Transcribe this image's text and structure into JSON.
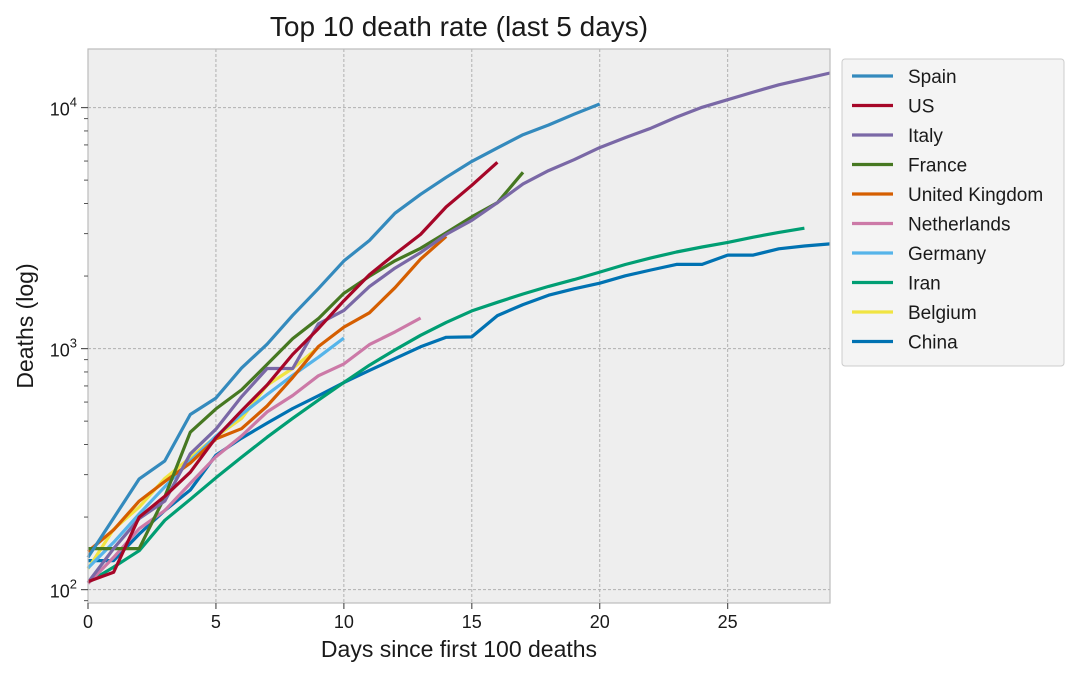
{
  "chart_data": {
    "type": "line",
    "title": "Top 10 death rate (last 5 days)",
    "xlabel": "Days since first 100 deaths",
    "ylabel": "Deaths (log)",
    "xlim": [
      0,
      29
    ],
    "ylim": [
      88,
      17500
    ],
    "yscale": "log",
    "x_ticks": [
      0,
      5,
      10,
      15,
      20,
      25
    ],
    "y_ticks": [
      {
        "value": 100,
        "base": "10",
        "exp": "2"
      },
      {
        "value": 1000,
        "base": "10",
        "exp": "3"
      },
      {
        "value": 10000,
        "base": "10",
        "exp": "4"
      }
    ],
    "grid": true,
    "legend_position": "outside-right",
    "background": "#eeeeee",
    "series": [
      {
        "name": "Spain",
        "color": "#348abd",
        "x": [
          0,
          1,
          2,
          3,
          4,
          5,
          6,
          7,
          8,
          9,
          10,
          11,
          12,
          13,
          14,
          15,
          16,
          17,
          18,
          19,
          20
        ],
        "y": [
          136,
          198,
          288,
          342,
          533,
          623,
          830,
          1043,
          1375,
          1772,
          2311,
          2808,
          3647,
          4365,
          5138,
          5982,
          6803,
          7716,
          8464,
          9387,
          10348
        ]
      },
      {
        "name": "US",
        "color": "#a60628",
        "x": [
          0,
          1,
          2,
          3,
          4,
          5,
          6,
          7,
          8,
          9,
          10,
          11,
          12,
          13,
          14,
          15,
          16
        ],
        "y": [
          108,
          118,
          200,
          244,
          307,
          427,
          552,
          706,
          946,
          1209,
          1581,
          2026,
          2467,
          2978,
          3873,
          4757,
          5926
        ]
      },
      {
        "name": "Italy",
        "color": "#7a68a6",
        "x": [
          0,
          1,
          2,
          3,
          4,
          5,
          6,
          7,
          8,
          9,
          10,
          11,
          12,
          13,
          14,
          15,
          16,
          17,
          18,
          19,
          20,
          21,
          22,
          23,
          24,
          25,
          26,
          27,
          28,
          29
        ],
        "y": [
          107,
          148,
          197,
          233,
          366,
          463,
          631,
          827,
          827,
          1266,
          1441,
          1809,
          2158,
          2503,
          2978,
          3405,
          4032,
          4825,
          5476,
          6077,
          6820,
          7503,
          8215,
          9134,
          10023,
          10779,
          11591,
          12428,
          13155,
          13915
        ]
      },
      {
        "name": "France",
        "color": "#467821",
        "x": [
          0,
          1,
          2,
          3,
          4,
          5,
          6,
          7,
          8,
          9,
          10,
          11,
          12,
          13,
          14,
          15,
          16,
          17
        ],
        "y": [
          148,
          148,
          148,
          243,
          450,
          562,
          674,
          860,
          1100,
          1331,
          1696,
          1995,
          2314,
          2606,
          3024,
          3523,
          4032,
          5387
        ]
      },
      {
        "name": "United Kingdom",
        "color": "#d55e00",
        "x": [
          0,
          1,
          2,
          3,
          4,
          5,
          6,
          7,
          8,
          9,
          10,
          11,
          12,
          13,
          14
        ],
        "y": [
          144,
          177,
          233,
          281,
          335,
          422,
          465,
          578,
          759,
          1019,
          1228,
          1408,
          1789,
          2352,
          2921
        ]
      },
      {
        "name": "Netherlands",
        "color": "#cc79a7",
        "x": [
          0,
          1,
          2,
          3,
          4,
          5,
          6,
          7,
          8,
          9,
          10,
          11,
          12,
          13
        ],
        "y": [
          106,
          136,
          179,
          213,
          276,
          356,
          434,
          546,
          639,
          771,
          864,
          1039,
          1173,
          1339
        ]
      },
      {
        "name": "Germany",
        "color": "#56b4e9",
        "x": [
          0,
          1,
          2,
          3,
          4,
          5,
          6,
          7,
          8,
          9,
          10
        ],
        "y": [
          123,
          157,
          206,
          267,
          342,
          433,
          533,
          645,
          775,
          920,
          1107
        ]
      },
      {
        "name": "Iran",
        "color": "#009e73",
        "x": [
          0,
          1,
          2,
          3,
          4,
          5,
          6,
          7,
          8,
          9,
          10,
          11,
          12,
          13,
          14,
          15,
          16,
          17,
          18,
          19,
          20,
          21,
          22,
          23,
          24,
          25,
          26,
          27,
          28
        ],
        "y": [
          107,
          124,
          145,
          194,
          237,
          291,
          354,
          429,
          514,
          611,
          724,
          853,
          988,
          1135,
          1284,
          1433,
          1556,
          1685,
          1812,
          1934,
          2077,
          2234,
          2378,
          2517,
          2640,
          2757,
          2898,
          3036,
          3160
        ]
      },
      {
        "name": "Belgium",
        "color": "#f0e442",
        "x": [
          0,
          1,
          2,
          3,
          4,
          5,
          6,
          7,
          8,
          9
        ],
        "y": [
          122,
          178,
          220,
          289,
          353,
          431,
          513,
          705,
          828,
          1011
        ]
      },
      {
        "name": "China",
        "color": "#0072b2",
        "x": [
          0,
          1,
          2,
          3,
          4,
          5,
          6,
          7,
          8,
          9,
          10,
          11,
          12,
          13,
          14,
          15,
          16,
          17,
          18,
          19,
          20,
          21,
          22,
          23,
          24,
          25,
          26,
          27,
          28,
          29
        ],
        "y": [
          132,
          132,
          170,
          213,
          259,
          361,
          425,
          491,
          564,
          637,
          723,
          812,
          909,
          1017,
          1114,
          1118,
          1371,
          1523,
          1666,
          1770,
          1868,
          2004,
          2118,
          2236,
          2236,
          2442,
          2442,
          2595,
          2665,
          2718
        ]
      }
    ]
  }
}
